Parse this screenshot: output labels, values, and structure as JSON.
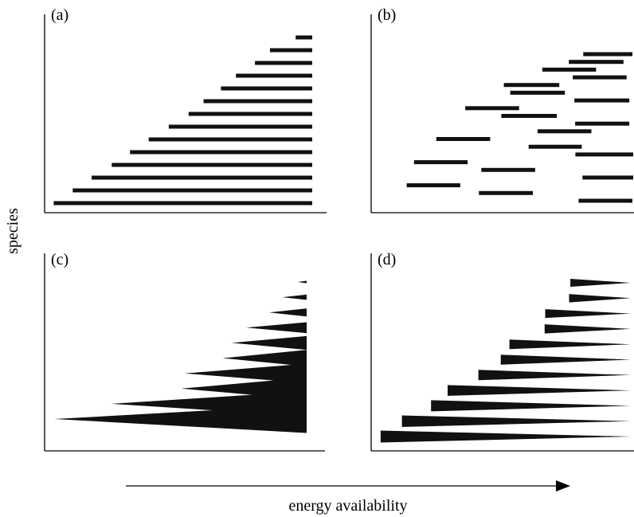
{
  "ylabel": "species",
  "xlabel": "energy availability",
  "panels": [
    {
      "label": "(a)",
      "shape": "bar",
      "ranges": [
        [
          0.938,
          1.0
        ],
        [
          0.842,
          1.0
        ],
        [
          0.786,
          1.0
        ],
        [
          0.715,
          1.0
        ],
        [
          0.659,
          1.0
        ],
        [
          0.594,
          1.0
        ],
        [
          0.538,
          1.0
        ],
        [
          0.464,
          1.0
        ],
        [
          0.389,
          1.0
        ],
        [
          0.319,
          1.0
        ],
        [
          0.251,
          1.0
        ],
        [
          0.176,
          1.0
        ],
        [
          0.105,
          1.0
        ],
        [
          0.034,
          1.0
        ]
      ]
    },
    {
      "label": "(b)",
      "shape": "bar",
      "ranges": [
        [
          0.807,
          0.994
        ],
        [
          0.752,
          0.96
        ],
        [
          0.651,
          0.856
        ],
        [
          0.767,
          0.972
        ],
        [
          0.505,
          0.716
        ],
        [
          0.529,
          0.737
        ],
        [
          0.773,
          0.982
        ],
        [
          0.358,
          0.563
        ],
        [
          0.495,
          0.706
        ],
        [
          0.776,
          0.982
        ],
        [
          0.633,
          0.838
        ],
        [
          0.248,
          0.453
        ],
        [
          0.599,
          0.801
        ],
        [
          0.777,
          0.997
        ],
        [
          0.163,
          0.367
        ],
        [
          0.419,
          0.624
        ],
        [
          0.804,
          0.997
        ],
        [
          0.135,
          0.339
        ],
        [
          0.41,
          0.615
        ],
        [
          0.789,
          0.994
        ]
      ]
    },
    {
      "label": "(c)",
      "shape": "wedge",
      "ranges": [
        [
          0.966,
          1.0
        ],
        [
          0.907,
          1.0
        ],
        [
          0.857,
          1.0
        ],
        [
          0.77,
          1.0
        ],
        [
          0.714,
          1.0
        ],
        [
          0.68,
          1.0
        ],
        [
          0.535,
          1.0
        ],
        [
          0.522,
          1.0
        ],
        [
          0.255,
          1.0
        ],
        [
          0.037,
          1.0
        ]
      ]
    },
    {
      "label": "(d)",
      "shape": "wedge-reversed",
      "ranges": [
        [
          0.758,
          0.987
        ],
        [
          0.753,
          0.987
        ],
        [
          0.662,
          0.987
        ],
        [
          0.66,
          0.987
        ],
        [
          0.526,
          0.987
        ],
        [
          0.493,
          0.987
        ],
        [
          0.408,
          0.987
        ],
        [
          0.291,
          0.987
        ],
        [
          0.228,
          0.987
        ],
        [
          0.117,
          0.987
        ],
        [
          0.036,
          0.987
        ]
      ]
    }
  ]
}
